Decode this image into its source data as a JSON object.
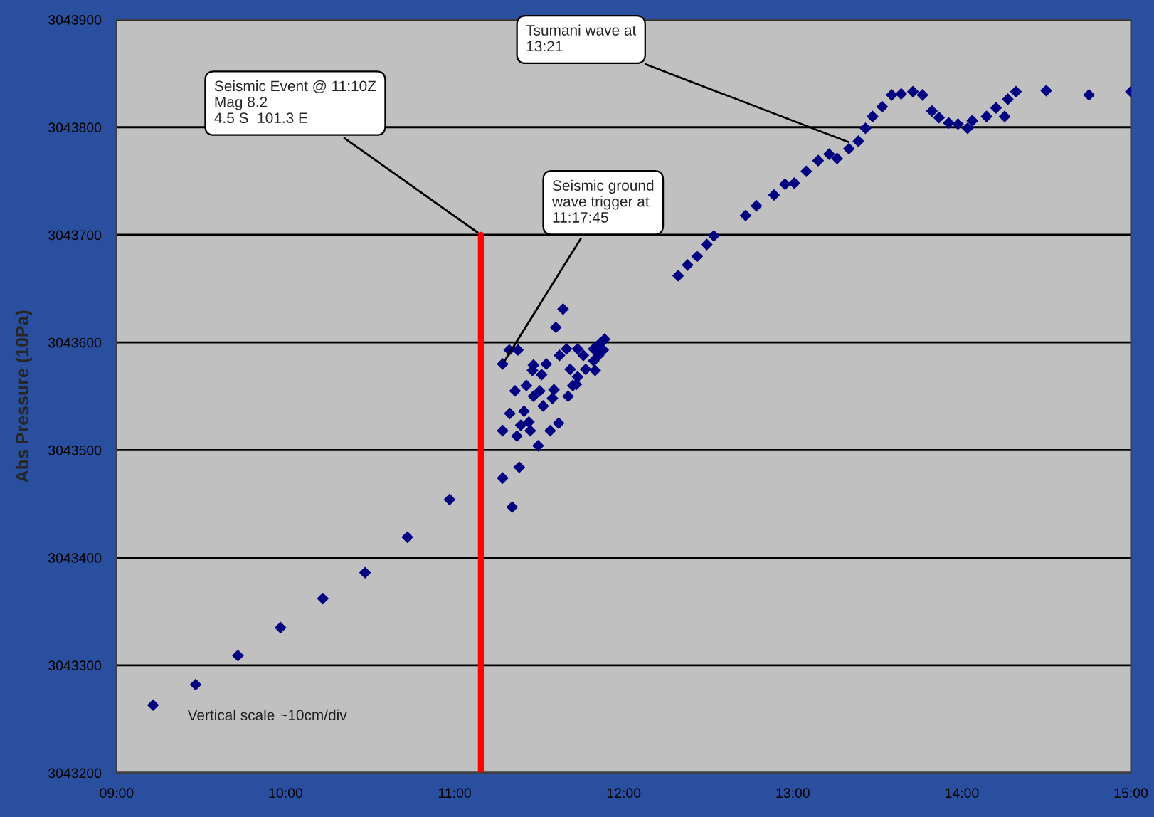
{
  "chart_data": {
    "type": "scatter",
    "ylabel": "Abs Pressure (10Pa)",
    "xlim": [
      9,
      15
    ],
    "ylim": [
      3043200,
      3043900
    ],
    "xticks": [
      {
        "value": 9,
        "label": "09:00"
      },
      {
        "value": 10,
        "label": "10:00"
      },
      {
        "value": 11,
        "label": "11:00"
      },
      {
        "value": 12,
        "label": "12:00"
      },
      {
        "value": 13,
        "label": "13:00"
      },
      {
        "value": 14,
        "label": "14:00"
      },
      {
        "value": 15,
        "label": "15:00"
      }
    ],
    "yticks": [
      3043200,
      3043300,
      3043400,
      3043500,
      3043600,
      3043700,
      3043800,
      3043900
    ],
    "grid": "y",
    "legend": false,
    "series": [
      {
        "marker": "diamond",
        "color": "#000080",
        "x": [
          9.216,
          9.468,
          9.718,
          9.97,
          10.22,
          10.47,
          10.72,
          10.97,
          11.284,
          11.323,
          11.374,
          11.641,
          11.598,
          11.284,
          11.284,
          11.382,
          11.34,
          11.494,
          11.368,
          11.326,
          11.357,
          11.424,
          11.46,
          11.466,
          11.542,
          11.514,
          11.503,
          11.466,
          11.41,
          11.439,
          11.447,
          11.391,
          11.523,
          11.587,
          11.578,
          11.565,
          11.615,
          11.671,
          11.699,
          11.683,
          11.727,
          11.719,
          11.62,
          11.662,
          11.727,
          11.761,
          11.775,
          11.822,
          11.831,
          11.822,
          11.851,
          11.887,
          11.859,
          11.879,
          12.322,
          12.378,
          12.434,
          12.491,
          12.533,
          12.721,
          12.785,
          12.889,
          12.954,
          13.009,
          13.08,
          13.15,
          13.215,
          13.262,
          13.332,
          13.388,
          13.43,
          13.472,
          13.529,
          13.585,
          13.641,
          13.711,
          13.767,
          13.823,
          13.865,
          13.922,
          13.977,
          14.034,
          14.062,
          14.146,
          14.202,
          14.253,
          14.272,
          14.32,
          14.499,
          14.752,
          15.0
        ],
        "values": [
          3043263,
          3043282,
          3043309,
          3043335,
          3043362,
          3043386,
          3043419,
          3043454,
          3043580,
          3043593,
          3043593,
          3043631,
          3043614,
          3043518,
          3043474,
          3043484,
          3043447,
          3043504,
          3043513,
          3043534,
          3043555,
          3043560,
          3043574,
          3043579,
          3043580,
          3043570,
          3043555,
          3043550,
          3043536,
          3043526,
          3043518,
          3043523,
          3043541,
          3043556,
          3043548,
          3043518,
          3043525,
          3043550,
          3043560,
          3043575,
          3043568,
          3043561,
          3043588,
          3043594,
          3043594,
          3043588,
          3043575,
          3043583,
          3043574,
          3043594,
          3043588,
          3043603,
          3043599,
          3043593,
          3043662,
          3043672,
          3043680,
          3043691,
          3043699,
          3043718,
          3043727,
          3043737,
          3043747,
          3043748,
          3043759,
          3043769,
          3043775,
          3043771,
          3043780,
          3043787,
          3043799,
          3043810,
          3043819,
          3043830,
          3043831,
          3043833,
          3043830,
          3043815,
          3043809,
          3043804,
          3043803,
          3043799,
          3043806,
          3043810,
          3043818,
          3043810,
          3043826,
          3043833,
          3043834,
          3043830,
          3043833
        ]
      },
      {
        "type": "line",
        "color": "#ff0000",
        "x": [
          11.155,
          11.155
        ],
        "values": [
          3043200,
          3043700
        ]
      }
    ],
    "annotations": [
      {
        "text": "Seismic Event @ 11:10Z\nMag 8.2\n4.5 S  101.3 E",
        "x": 11.155,
        "y": 3043700
      },
      {
        "text": "Seismic ground\nwave trigger at\n11:17:45",
        "x": 11.284,
        "y": 3043580
      },
      {
        "text": "Tsumani wave at\n13:21",
        "x": 13.35,
        "y": 3043785
      },
      "Vertical scale ~10cm/div"
    ]
  }
}
